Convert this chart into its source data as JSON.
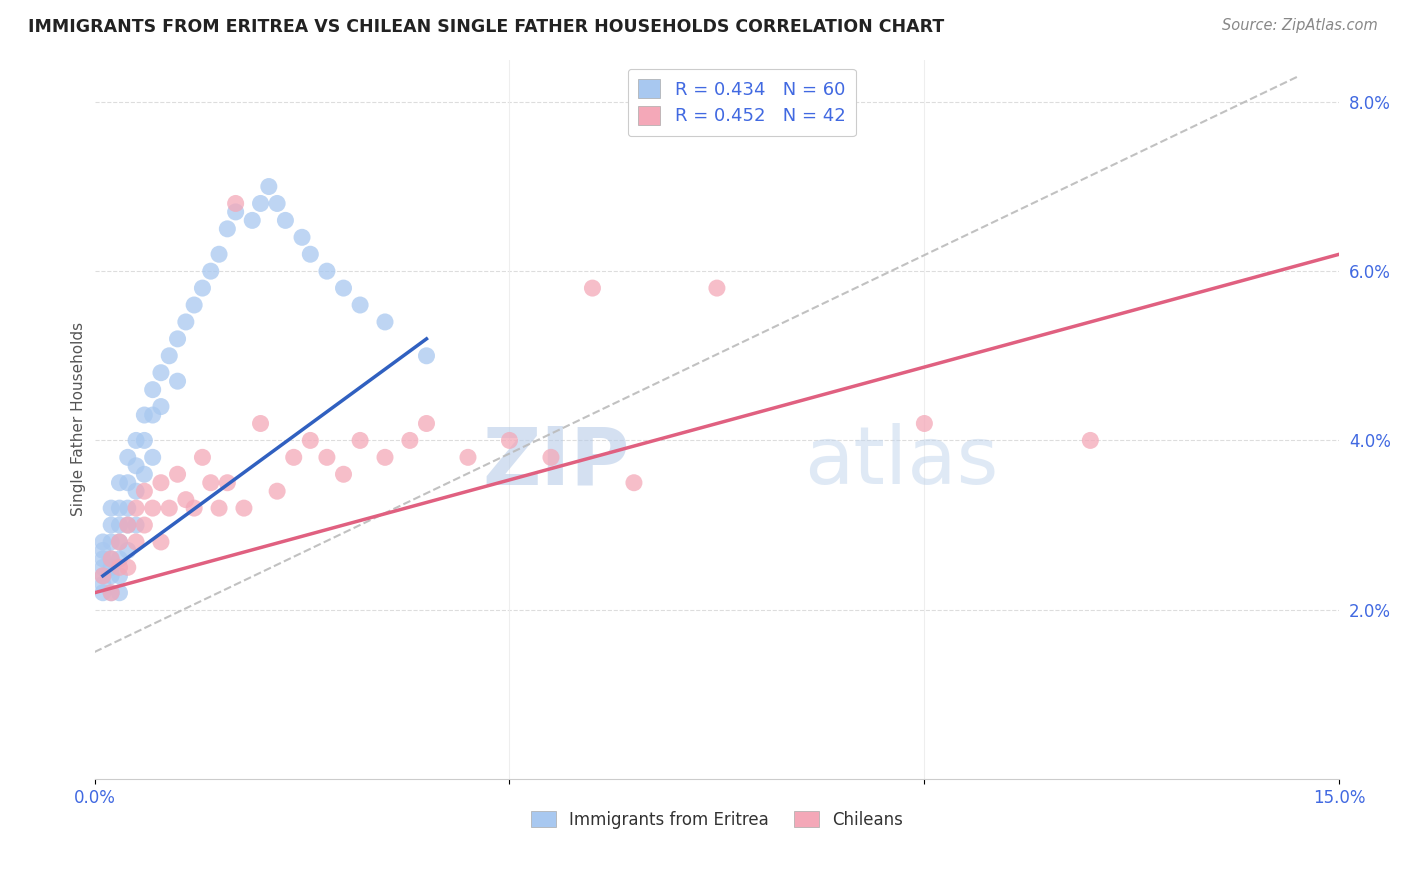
{
  "title": "IMMIGRANTS FROM ERITREA VS CHILEAN SINGLE FATHER HOUSEHOLDS CORRELATION CHART",
  "source": "Source: ZipAtlas.com",
  "ylabel": "Single Father Households",
  "xlim": [
    0.0,
    0.15
  ],
  "ylim": [
    0.0,
    0.085
  ],
  "legend_blue_r": "0.434",
  "legend_blue_n": "60",
  "legend_pink_r": "0.452",
  "legend_pink_n": "42",
  "legend_label_blue": "Immigrants from Eritrea",
  "legend_label_pink": "Chileans",
  "blue_color": "#A8C8F0",
  "pink_color": "#F4A8B8",
  "blue_line_color": "#3060C0",
  "pink_line_color": "#E06080",
  "dashed_line_color": "#BBBBBB",
  "watermark_zip": "ZIP",
  "watermark_atlas": "atlas",
  "blue_scatter_x": [
    0.001,
    0.001,
    0.001,
    0.001,
    0.001,
    0.001,
    0.001,
    0.002,
    0.002,
    0.002,
    0.002,
    0.002,
    0.002,
    0.002,
    0.003,
    0.003,
    0.003,
    0.003,
    0.003,
    0.003,
    0.003,
    0.004,
    0.004,
    0.004,
    0.004,
    0.004,
    0.005,
    0.005,
    0.005,
    0.005,
    0.006,
    0.006,
    0.006,
    0.007,
    0.007,
    0.007,
    0.008,
    0.008,
    0.009,
    0.01,
    0.01,
    0.011,
    0.012,
    0.013,
    0.014,
    0.015,
    0.016,
    0.017,
    0.019,
    0.02,
    0.021,
    0.022,
    0.023,
    0.025,
    0.026,
    0.028,
    0.03,
    0.032,
    0.035,
    0.04
  ],
  "blue_scatter_y": [
    0.028,
    0.027,
    0.026,
    0.025,
    0.024,
    0.023,
    0.022,
    0.032,
    0.03,
    0.028,
    0.026,
    0.025,
    0.024,
    0.022,
    0.035,
    0.032,
    0.03,
    0.028,
    0.026,
    0.024,
    0.022,
    0.038,
    0.035,
    0.032,
    0.03,
    0.027,
    0.04,
    0.037,
    0.034,
    0.03,
    0.043,
    0.04,
    0.036,
    0.046,
    0.043,
    0.038,
    0.048,
    0.044,
    0.05,
    0.052,
    0.047,
    0.054,
    0.056,
    0.058,
    0.06,
    0.062,
    0.065,
    0.067,
    0.066,
    0.068,
    0.07,
    0.068,
    0.066,
    0.064,
    0.062,
    0.06,
    0.058,
    0.056,
    0.054,
    0.05
  ],
  "pink_scatter_x": [
    0.001,
    0.002,
    0.002,
    0.003,
    0.003,
    0.004,
    0.004,
    0.005,
    0.005,
    0.006,
    0.006,
    0.007,
    0.008,
    0.008,
    0.009,
    0.01,
    0.011,
    0.012,
    0.013,
    0.014,
    0.015,
    0.016,
    0.017,
    0.018,
    0.02,
    0.022,
    0.024,
    0.026,
    0.028,
    0.03,
    0.032,
    0.035,
    0.038,
    0.04,
    0.045,
    0.05,
    0.055,
    0.06,
    0.065,
    0.075,
    0.1,
    0.12
  ],
  "pink_scatter_y": [
    0.024,
    0.026,
    0.022,
    0.028,
    0.025,
    0.03,
    0.025,
    0.032,
    0.028,
    0.034,
    0.03,
    0.032,
    0.035,
    0.028,
    0.032,
    0.036,
    0.033,
    0.032,
    0.038,
    0.035,
    0.032,
    0.035,
    0.068,
    0.032,
    0.042,
    0.034,
    0.038,
    0.04,
    0.038,
    0.036,
    0.04,
    0.038,
    0.04,
    0.042,
    0.038,
    0.04,
    0.038,
    0.058,
    0.035,
    0.058,
    0.042,
    0.04
  ],
  "blue_line_x0": 0.001,
  "blue_line_x1": 0.04,
  "blue_line_y0": 0.024,
  "blue_line_y1": 0.052,
  "pink_line_x0": 0.0,
  "pink_line_x1": 0.15,
  "pink_line_y0": 0.022,
  "pink_line_y1": 0.062,
  "dash_line_x0": 0.0,
  "dash_line_x1": 0.145,
  "dash_line_y0": 0.015,
  "dash_line_y1": 0.083
}
